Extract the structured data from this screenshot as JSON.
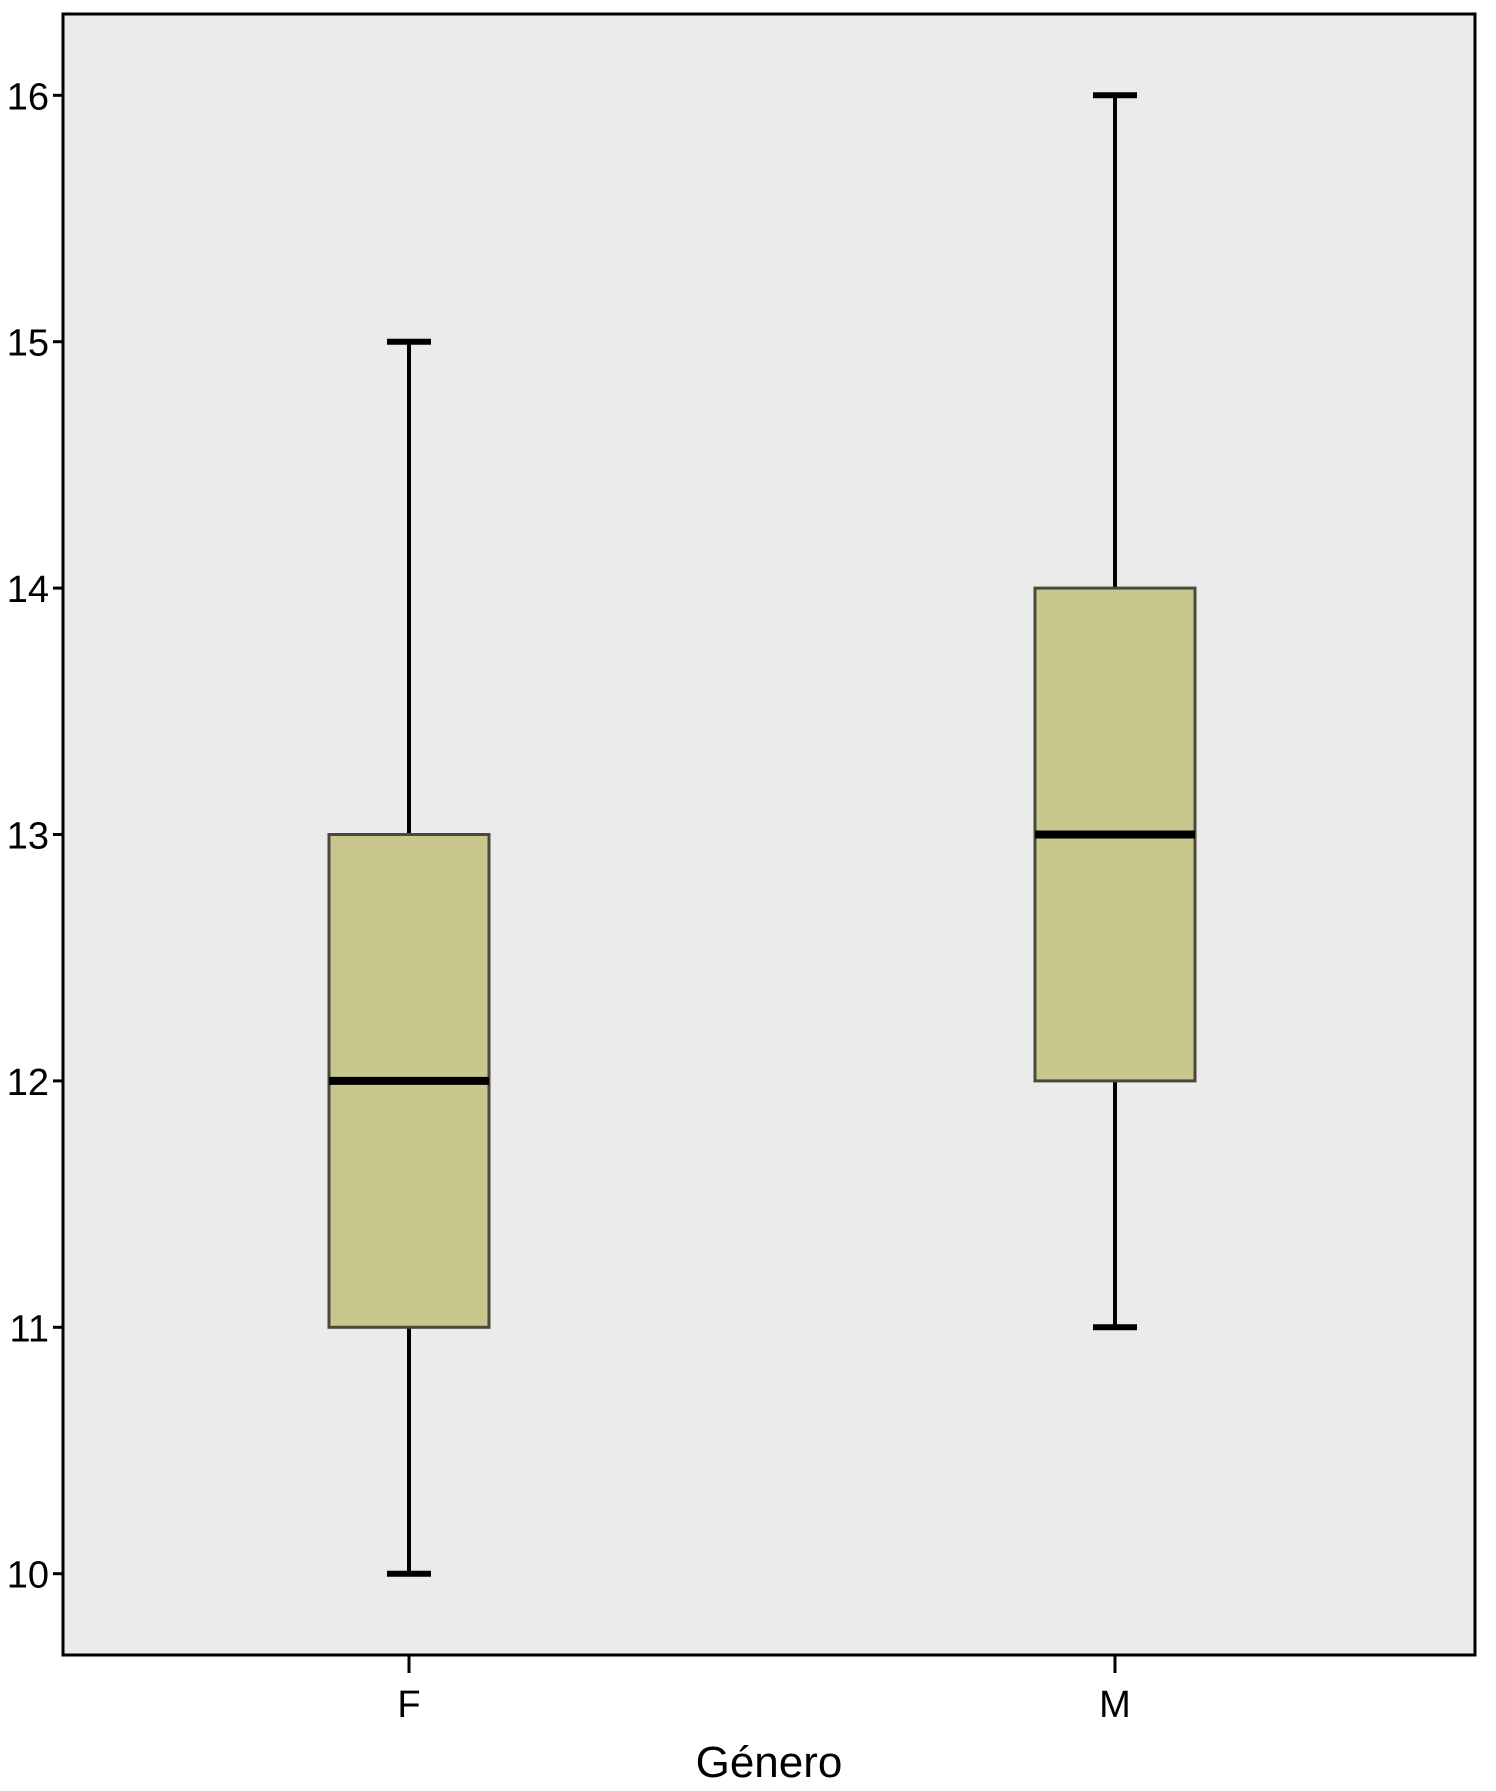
{
  "chart_data": {
    "type": "boxplot",
    "xlabel": "Género",
    "ylabel": "",
    "ylim": [
      9.67,
      16.33
    ],
    "yticks": [
      10,
      11,
      12,
      13,
      14,
      15,
      16
    ],
    "ytick_labels": [
      "10",
      "11",
      "12",
      "13",
      "14",
      "15",
      "16"
    ],
    "categories": [
      "F",
      "M"
    ],
    "boxes": [
      {
        "category": "F",
        "whisker_low": 10,
        "q1": 11,
        "median": 12,
        "q3": 13,
        "whisker_high": 15
      },
      {
        "category": "M",
        "whisker_low": 11,
        "q1": 12,
        "median": 13,
        "q3": 14,
        "whisker_high": 16
      }
    ],
    "grid": false,
    "legend": "none",
    "colors": {
      "plot_background": "#ebebeb",
      "box_fill": "#c8c88e",
      "box_stroke": "#4a4a3a",
      "line": "#000000"
    }
  }
}
